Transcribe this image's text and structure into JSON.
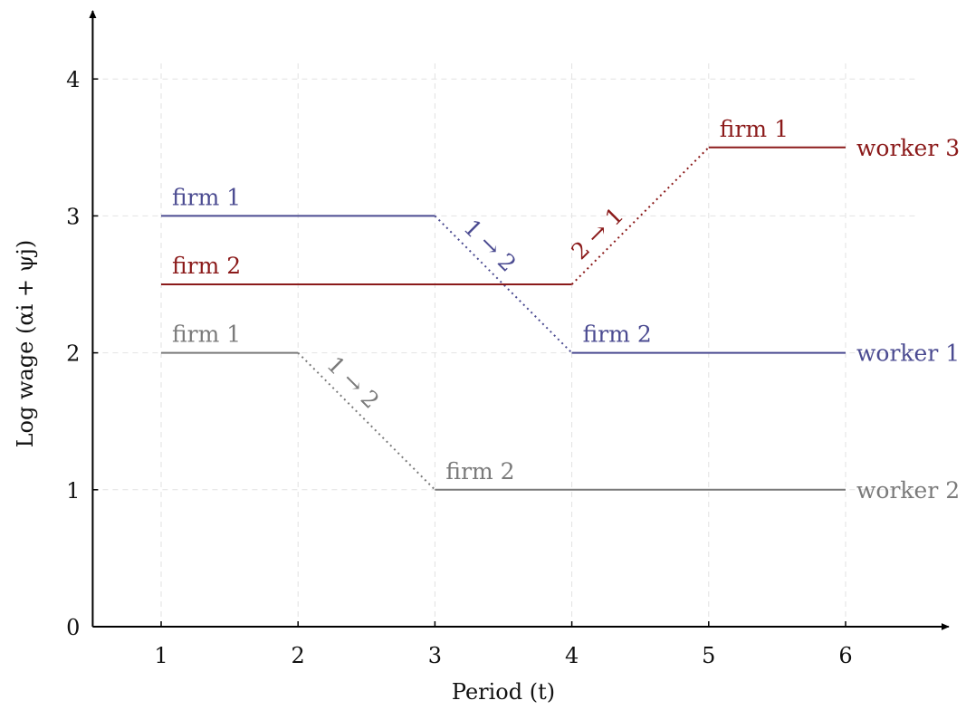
{
  "chart_data": {
    "type": "line",
    "xlabel": "Period (t)",
    "ylabel": "Log wage (αi + ψj)",
    "xlim": [
      0.5,
      6.7
    ],
    "ylim": [
      0,
      4.5
    ],
    "x_ticks": [
      1,
      2,
      3,
      4,
      5,
      6
    ],
    "y_ticks": [
      0,
      1,
      2,
      3,
      4
    ],
    "grid": true,
    "colors": {
      "worker 1": "#4b4b91",
      "worker 2": "#7a7a7a",
      "worker 3": "#8b1a1a"
    },
    "series": [
      {
        "name": "worker 1",
        "color": "#4b4b91",
        "segments": [
          {
            "x": [
              1,
              3
            ],
            "y": [
              3,
              3
            ],
            "label": "firm 1"
          },
          {
            "x": [
              4,
              6
            ],
            "y": [
              2,
              2
            ],
            "label": "firm 2"
          }
        ],
        "switches": [
          {
            "x": [
              3,
              4
            ],
            "y": [
              3,
              2
            ],
            "label": "1 → 2"
          }
        ]
      },
      {
        "name": "worker 2",
        "color": "#7a7a7a",
        "segments": [
          {
            "x": [
              1,
              2
            ],
            "y": [
              2,
              2
            ],
            "label": "firm 1"
          },
          {
            "x": [
              3,
              6
            ],
            "y": [
              1,
              1
            ],
            "label": "firm 2"
          }
        ],
        "switches": [
          {
            "x": [
              2,
              3
            ],
            "y": [
              2,
              1
            ],
            "label": "1 → 2"
          }
        ]
      },
      {
        "name": "worker 3",
        "color": "#8b1a1a",
        "segments": [
          {
            "x": [
              1,
              4
            ],
            "y": [
              2.5,
              2.5
            ],
            "label": "firm 2"
          },
          {
            "x": [
              5,
              6
            ],
            "y": [
              3.5,
              3.5
            ],
            "label": "firm 1"
          }
        ],
        "switches": [
          {
            "x": [
              4,
              5
            ],
            "y": [
              2.5,
              3.5
            ],
            "label": "2 → 1"
          }
        ]
      }
    ]
  }
}
